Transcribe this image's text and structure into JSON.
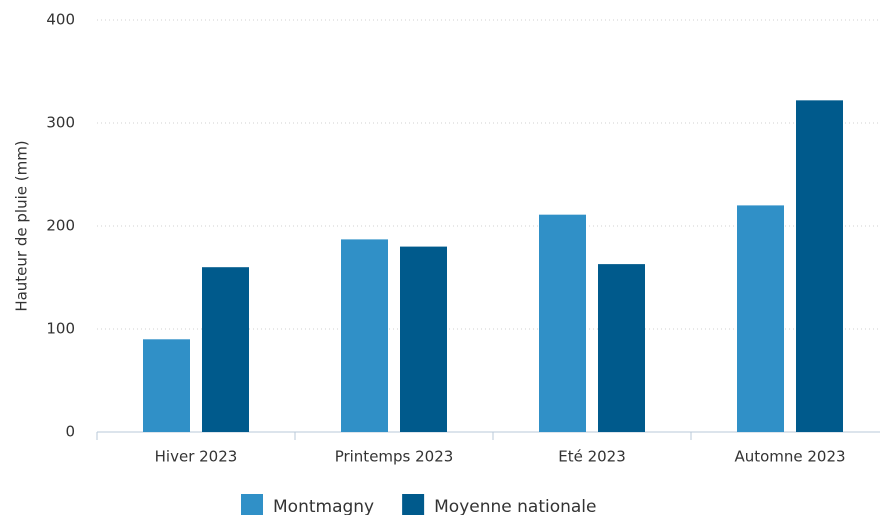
{
  "chart_data": {
    "type": "bar",
    "y_label": "Hauteur de pluie (mm)",
    "categories": [
      "Hiver 2023",
      "Printemps 2023",
      "Eté 2023",
      "Automne 2023"
    ],
    "series": [
      {
        "name": "Montmagny",
        "color": "#3090c7",
        "values": [
          90,
          187,
          211,
          220
        ]
      },
      {
        "name": "Moyenne nationale",
        "color": "#005a8c",
        "values": [
          160,
          180,
          163,
          322
        ]
      }
    ],
    "ylim": [
      0,
      400
    ],
    "yticks": [
      0,
      100,
      200,
      300,
      400
    ],
    "grid": true,
    "legend": "bottom"
  }
}
